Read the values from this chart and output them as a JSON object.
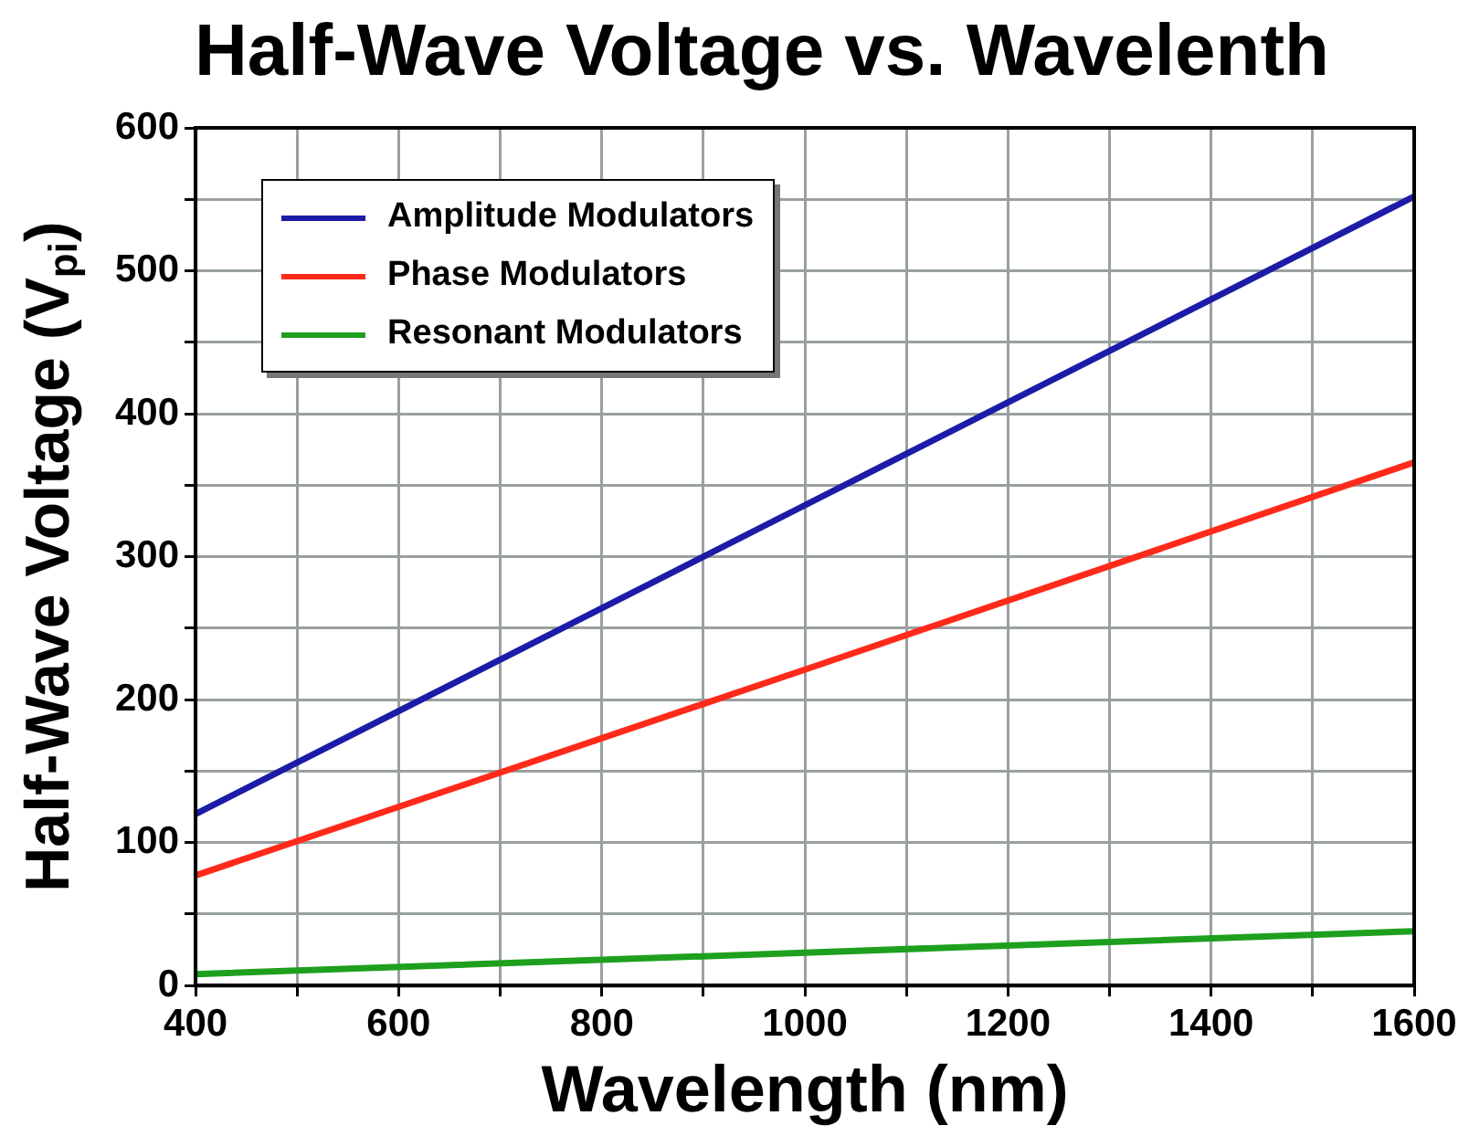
{
  "chart_data": {
    "type": "line",
    "title": "Half-Wave Voltage vs. Wavelenth",
    "xlabel": "Wavelength (nm)",
    "ylabel": "Half-Wave Voltage (V$_{pi}$)",
    "series": [
      {
        "name": "Amplitude Modulators",
        "color": "#1c1ca8",
        "x": [
          400,
          1000,
          1600
        ],
        "values": [
          120,
          336,
          552
        ]
      },
      {
        "name": "Phase Modulators",
        "color": "#ff2a1a",
        "x": [
          400,
          1000,
          1600
        ],
        "values": [
          77,
          221,
          366
        ]
      },
      {
        "name": "Resonant Modulators",
        "color": "#1ea01e",
        "x": [
          400,
          1000,
          1600
        ],
        "values": [
          8,
          23,
          38
        ]
      }
    ],
    "xlim": [
      400,
      1600
    ],
    "xticks": [
      400,
      {
        "value": 500,
        "label": null
      },
      600,
      {
        "value": 700,
        "label": null
      },
      800,
      {
        "value": 900,
        "label": null
      },
      1000,
      {
        "value": 1100,
        "label": null
      },
      1200,
      {
        "value": 1300,
        "label": null
      },
      1400,
      {
        "value": 1500,
        "label": null
      },
      1600
    ],
    "ylim": [
      0,
      600
    ],
    "yticks": [
      0,
      {
        "value": 50,
        "label": null
      },
      100,
      {
        "value": 150,
        "label": null
      },
      200,
      {
        "value": 250,
        "label": null
      },
      300,
      {
        "value": 350,
        "label": null
      },
      400,
      {
        "value": 450,
        "label": null
      },
      500,
      {
        "value": 550,
        "label": null
      },
      600
    ],
    "grid": true,
    "legend": "top left",
    "marker": "none",
    "line_style": "solid"
  }
}
